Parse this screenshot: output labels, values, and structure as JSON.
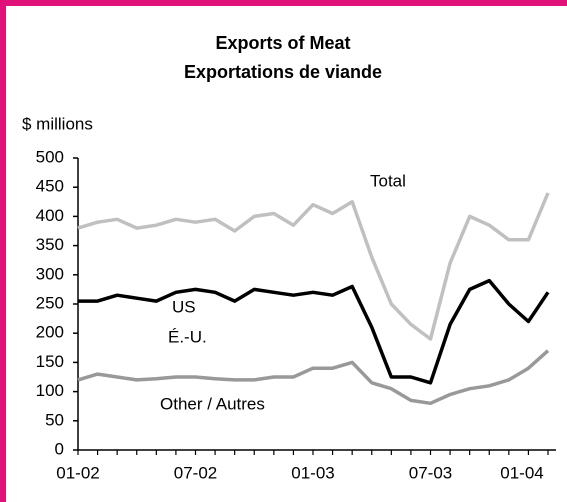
{
  "chart_data": {
    "type": "line",
    "title": "Exports of Meat",
    "subtitle": "Exportations de viande",
    "y_label": "$ millions",
    "categories": [
      "01-02",
      null,
      null,
      null,
      null,
      null,
      "07-02",
      null,
      null,
      null,
      null,
      null,
      "01-03",
      null,
      null,
      null,
      null,
      null,
      "07-03",
      null,
      null,
      null,
      null,
      null,
      "01-04"
    ],
    "series": [
      {
        "name": "Total",
        "color": "#c0c0c0",
        "values": [
          380,
          390,
          395,
          380,
          385,
          395,
          390,
          395,
          375,
          400,
          405,
          385,
          420,
          405,
          425,
          330,
          250,
          215,
          190,
          320,
          400,
          385,
          360,
          360,
          440
        ]
      },
      {
        "name": "US",
        "color": "#000000",
        "values": [
          255,
          255,
          265,
          260,
          255,
          270,
          275,
          270,
          255,
          275,
          270,
          265,
          270,
          265,
          280,
          210,
          125,
          125,
          115,
          215,
          275,
          290,
          250,
          220,
          270
        ]
      },
      {
        "name": "Other / Autres",
        "color": "#999999",
        "values": [
          120,
          130,
          125,
          120,
          122,
          125,
          125,
          122,
          120,
          120,
          125,
          125,
          140,
          140,
          150,
          115,
          105,
          85,
          80,
          95,
          105,
          110,
          120,
          140,
          170
        ]
      }
    ],
    "annotations": [
      "É.-U."
    ],
    "ylim": [
      0,
      500
    ],
    "yticks": [
      0,
      50,
      100,
      150,
      200,
      250,
      300,
      350,
      400,
      450,
      500
    ]
  }
}
